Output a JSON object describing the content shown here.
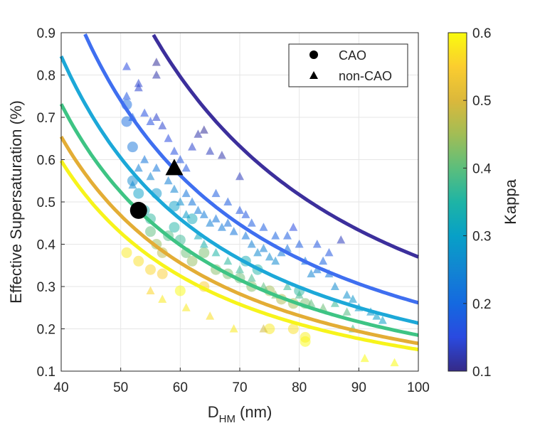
{
  "chart_data": {
    "type": "scatter",
    "xlabel": {
      "main": "D",
      "sub": "HM",
      "suffix": " (nm)"
    },
    "ylabel": "Effective Supersaturation (%)",
    "xlim": [
      40,
      100
    ],
    "ylim": [
      0.1,
      0.9
    ],
    "xticks": [
      "40",
      "50",
      "60",
      "70",
      "80",
      "90",
      "100"
    ],
    "yticks": [
      "0.1",
      "0.2",
      "0.3",
      "0.4",
      "0.5",
      "0.6",
      "0.7",
      "0.8",
      "0.9"
    ],
    "grid": true,
    "legend": {
      "placement": "top-right",
      "entries": [
        {
          "label": "CAO",
          "marker": "circle"
        },
        {
          "label": "non-CAO",
          "marker": "triangle"
        }
      ]
    },
    "colorbar": {
      "label": "Kappa",
      "range": [
        0.1,
        0.6
      ],
      "ticks": [
        "0.1",
        "0.2",
        "0.3",
        "0.4",
        "0.5",
        "0.6"
      ]
    },
    "kappa_curves": [
      {
        "kappa": 0.1,
        "color": "#3c2f9c"
      },
      {
        "kappa": 0.2,
        "color": "#3f6ff0"
      },
      {
        "kappa": 0.3,
        "color": "#1ca8d8"
      },
      {
        "kappa": 0.4,
        "color": "#3ec484"
      },
      {
        "kappa": 0.5,
        "color": "#e3ad35"
      },
      {
        "kappa": 0.6,
        "color": "#f7f41b"
      }
    ],
    "highlight_points": [
      {
        "name": "CAO mean",
        "marker": "circle",
        "x": 53,
        "y": 0.48
      },
      {
        "name": "non-CAO mean",
        "marker": "triangle",
        "x": 59,
        "y": 0.58
      }
    ],
    "cao_points": [
      [
        51,
        0.69,
        0.2
      ],
      [
        51,
        0.73,
        0.2
      ],
      [
        52,
        0.63,
        0.22
      ],
      [
        52,
        0.55,
        0.26
      ],
      [
        53,
        0.52,
        0.3
      ],
      [
        54,
        0.48,
        0.34
      ],
      [
        55,
        0.46,
        0.36
      ],
      [
        55,
        0.43,
        0.4
      ],
      [
        56,
        0.4,
        0.44
      ],
      [
        57,
        0.38,
        0.47
      ],
      [
        58,
        0.42,
        0.39
      ],
      [
        59,
        0.44,
        0.35
      ],
      [
        60,
        0.41,
        0.37
      ],
      [
        61,
        0.38,
        0.41
      ],
      [
        62,
        0.36,
        0.44
      ],
      [
        51,
        0.38,
        0.58
      ],
      [
        53,
        0.36,
        0.57
      ],
      [
        55,
        0.34,
        0.56
      ],
      [
        57,
        0.33,
        0.55
      ],
      [
        60,
        0.29,
        0.6
      ],
      [
        64,
        0.3,
        0.55
      ],
      [
        66,
        0.34,
        0.43
      ],
      [
        68,
        0.33,
        0.42
      ],
      [
        70,
        0.32,
        0.41
      ],
      [
        72,
        0.3,
        0.43
      ],
      [
        71,
        0.36,
        0.33
      ],
      [
        73,
        0.34,
        0.35
      ],
      [
        75,
        0.29,
        0.45
      ],
      [
        77,
        0.27,
        0.46
      ],
      [
        79,
        0.26,
        0.45
      ],
      [
        80,
        0.29,
        0.36
      ],
      [
        81,
        0.26,
        0.42
      ],
      [
        75,
        0.2,
        0.58
      ],
      [
        79,
        0.2,
        0.57
      ],
      [
        81,
        0.17,
        0.6
      ],
      [
        81,
        0.18,
        0.59
      ],
      [
        59,
        0.49,
        0.3
      ],
      [
        62,
        0.46,
        0.32
      ],
      [
        56,
        0.52,
        0.28
      ],
      [
        64,
        0.38,
        0.42
      ]
    ],
    "noncao_points": [
      [
        51,
        0.82,
        0.15
      ],
      [
        53,
        0.78,
        0.14
      ],
      [
        53,
        0.77,
        0.14
      ],
      [
        56,
        0.83,
        0.11
      ],
      [
        56,
        0.8,
        0.12
      ],
      [
        51,
        0.75,
        0.17
      ],
      [
        52,
        0.7,
        0.19
      ],
      [
        54,
        0.71,
        0.16
      ],
      [
        55,
        0.69,
        0.16
      ],
      [
        56,
        0.7,
        0.14
      ],
      [
        57,
        0.68,
        0.14
      ],
      [
        58,
        0.65,
        0.15
      ],
      [
        59,
        0.62,
        0.16
      ],
      [
        60,
        0.6,
        0.17
      ],
      [
        61,
        0.58,
        0.17
      ],
      [
        62,
        0.63,
        0.14
      ],
      [
        63,
        0.66,
        0.12
      ],
      [
        64,
        0.67,
        0.11
      ],
      [
        65,
        0.62,
        0.13
      ],
      [
        67,
        0.61,
        0.12
      ],
      [
        70,
        0.56,
        0.13
      ],
      [
        61,
        0.52,
        0.22
      ],
      [
        62,
        0.5,
        0.22
      ],
      [
        63,
        0.48,
        0.23
      ],
      [
        64,
        0.47,
        0.23
      ],
      [
        65,
        0.45,
        0.24
      ],
      [
        66,
        0.46,
        0.22
      ],
      [
        67,
        0.44,
        0.23
      ],
      [
        68,
        0.45,
        0.21
      ],
      [
        69,
        0.43,
        0.22
      ],
      [
        70,
        0.48,
        0.17
      ],
      [
        71,
        0.47,
        0.17
      ],
      [
        72,
        0.45,
        0.18
      ],
      [
        71,
        0.42,
        0.22
      ],
      [
        72,
        0.4,
        0.24
      ],
      [
        73,
        0.38,
        0.26
      ],
      [
        74,
        0.39,
        0.24
      ],
      [
        75,
        0.37,
        0.26
      ],
      [
        76,
        0.36,
        0.26
      ],
      [
        77,
        0.38,
        0.23
      ],
      [
        78,
        0.42,
        0.18
      ],
      [
        79,
        0.44,
        0.15
      ],
      [
        80,
        0.4,
        0.18
      ],
      [
        81,
        0.36,
        0.22
      ],
      [
        82,
        0.33,
        0.25
      ],
      [
        83,
        0.34,
        0.23
      ],
      [
        84,
        0.36,
        0.19
      ],
      [
        85,
        0.33,
        0.22
      ],
      [
        86,
        0.3,
        0.26
      ],
      [
        87,
        0.41,
        0.13
      ],
      [
        88,
        0.28,
        0.27
      ],
      [
        89,
        0.27,
        0.28
      ],
      [
        90,
        0.25,
        0.29
      ],
      [
        92,
        0.24,
        0.28
      ],
      [
        93,
        0.23,
        0.29
      ],
      [
        94,
        0.22,
        0.3
      ],
      [
        89,
        0.2,
        0.38
      ],
      [
        91,
        0.13,
        0.6
      ],
      [
        96,
        0.12,
        0.6
      ],
      [
        74,
        0.2,
        0.49
      ],
      [
        69,
        0.2,
        0.58
      ],
      [
        65,
        0.23,
        0.57
      ],
      [
        61,
        0.25,
        0.58
      ],
      [
        57,
        0.27,
        0.58
      ],
      [
        55,
        0.29,
        0.56
      ],
      [
        52,
        0.54,
        0.26
      ],
      [
        53,
        0.58,
        0.24
      ],
      [
        54,
        0.6,
        0.22
      ],
      [
        55,
        0.56,
        0.25
      ],
      [
        56,
        0.58,
        0.22
      ],
      [
        58,
        0.55,
        0.24
      ],
      [
        59,
        0.53,
        0.25
      ],
      [
        60,
        0.5,
        0.27
      ],
      [
        61,
        0.47,
        0.29
      ],
      [
        63,
        0.42,
        0.32
      ],
      [
        64,
        0.4,
        0.34
      ],
      [
        66,
        0.38,
        0.35
      ],
      [
        68,
        0.36,
        0.36
      ],
      [
        70,
        0.34,
        0.37
      ],
      [
        72,
        0.32,
        0.38
      ],
      [
        74,
        0.3,
        0.4
      ],
      [
        76,
        0.28,
        0.42
      ],
      [
        78,
        0.3,
        0.37
      ],
      [
        80,
        0.28,
        0.38
      ],
      [
        82,
        0.26,
        0.4
      ],
      [
        84,
        0.25,
        0.41
      ],
      [
        86,
        0.26,
        0.37
      ],
      [
        88,
        0.24,
        0.39
      ],
      [
        66,
        0.52,
        0.18
      ],
      [
        68,
        0.5,
        0.18
      ],
      [
        74,
        0.44,
        0.18
      ],
      [
        76,
        0.42,
        0.19
      ],
      [
        78,
        0.39,
        0.21
      ],
      [
        83,
        0.4,
        0.17
      ],
      [
        85,
        0.38,
        0.17
      ]
    ]
  }
}
